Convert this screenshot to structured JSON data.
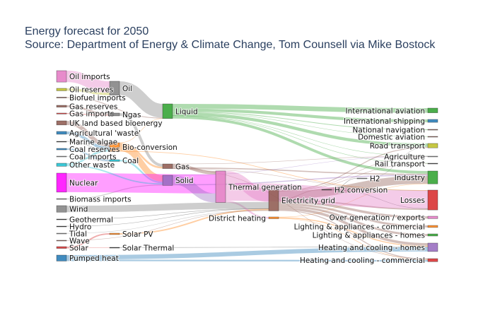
{
  "title": {
    "line1": "Energy forecast for 2050",
    "line2": "Source: Department of Energy & Climate Change, Tom Counsell via Mike Bostock"
  },
  "nodes": [
    {
      "label": "Agricultural 'waste'",
      "color": "#1f77b4"
    },
    {
      "label": "Bio-conversion",
      "color": "#ff7f0e"
    },
    {
      "label": "Liquid",
      "color": "#2ca02c"
    },
    {
      "label": "Losses",
      "color": "#d62728"
    },
    {
      "label": "Solid",
      "color": "#9467bd"
    },
    {
      "label": "Gas",
      "color": "#8c564b"
    },
    {
      "label": "Biofuel imports",
      "color": "#8c564b"
    },
    {
      "label": "Biomass imports",
      "color": "#7f7f7f"
    },
    {
      "label": "Coal imports",
      "color": "#7f7f7f"
    },
    {
      "label": "Coal",
      "color": "#17becf"
    },
    {
      "label": "Coal reserves",
      "color": "#1f77b4"
    },
    {
      "label": "District heating",
      "color": "#ff7f0e"
    },
    {
      "label": "Industry",
      "color": "#2ca02c"
    },
    {
      "label": "Heating and cooling - commercial",
      "color": "#d62728"
    },
    {
      "label": "Heating and cooling - homes",
      "color": "#9467bd"
    },
    {
      "label": "Electricity grid",
      "color": "#8c564b"
    },
    {
      "label": "Over generation / exports",
      "color": "#e377c2"
    },
    {
      "label": "H2 conversion",
      "color": "#333333"
    },
    {
      "label": "Road transport",
      "color": "#bcbd22"
    },
    {
      "label": "Agriculture",
      "color": "#7f7f7f"
    },
    {
      "label": "Rail transport",
      "color": "#333333"
    },
    {
      "label": "Lighting & appliances - commercial",
      "color": "#ff7f0e"
    },
    {
      "label": "Lighting & appliances - homes",
      "color": "#2ca02c"
    },
    {
      "label": "Gas imports",
      "color": "#d62728"
    },
    {
      "label": "Ngas",
      "color": "#7f7f7f"
    },
    {
      "label": "Gas reserves",
      "color": "#8c564b"
    },
    {
      "label": "Thermal generation",
      "color": "#e377c2"
    },
    {
      "label": "Geothermal",
      "color": "#222222"
    },
    {
      "label": "H2",
      "color": "#7f7f7f"
    },
    {
      "label": "Hydro",
      "color": "#222222"
    },
    {
      "label": "International shipping",
      "color": "#1f77b4"
    },
    {
      "label": "Domestic aviation",
      "color": "#8c564b"
    },
    {
      "label": "International aviation",
      "color": "#2ca02c"
    },
    {
      "label": "National navigation",
      "color": "#8c564b"
    },
    {
      "label": "Marine algae",
      "color": "#222222"
    },
    {
      "label": "Nuclear",
      "color": "#ff00ff"
    },
    {
      "label": "Oil imports",
      "color": "#e377c2"
    },
    {
      "label": "Oil",
      "color": "#7f7f7f"
    },
    {
      "label": "Oil reserves",
      "color": "#bcbd22"
    },
    {
      "label": "Other waste",
      "color": "#17becf"
    },
    {
      "label": "Pumped heat",
      "color": "#1f77b4"
    },
    {
      "label": "Solar PV",
      "color": "#ff7f0e"
    },
    {
      "label": "Solar Thermal",
      "color": "#222222"
    },
    {
      "label": "Solar",
      "color": "#d62728"
    },
    {
      "label": "Tidal",
      "color": "#7f7f7f"
    },
    {
      "label": "UK land based bioenergy",
      "color": "#8c564b"
    },
    {
      "label": "Wave",
      "color": "#8c564b"
    },
    {
      "label": "Wind",
      "color": "#7f7f7f"
    }
  ],
  "links": [
    [
      0,
      1,
      124.729
    ],
    [
      1,
      2,
      0.597
    ],
    [
      1,
      3,
      26.862
    ],
    [
      1,
      4,
      280.322
    ],
    [
      1,
      5,
      81.144
    ],
    [
      6,
      2,
      35
    ],
    [
      7,
      4,
      35
    ],
    [
      8,
      9,
      11.606
    ],
    [
      10,
      9,
      63.965
    ],
    [
      9,
      4,
      75.571
    ],
    [
      11,
      12,
      10.639
    ],
    [
      11,
      13,
      22.505
    ],
    [
      11,
      14,
      46.184
    ],
    [
      15,
      16,
      104.453
    ],
    [
      15,
      14,
      113.726
    ],
    [
      15,
      17,
      27.14
    ],
    [
      15,
      12,
      342.165
    ],
    [
      15,
      18,
      37.797
    ],
    [
      15,
      19,
      4.412
    ],
    [
      15,
      13,
      40.858
    ],
    [
      15,
      3,
      56.691
    ],
    [
      15,
      20,
      7.863
    ],
    [
      15,
      21,
      90.008
    ],
    [
      15,
      22,
      93.494
    ],
    [
      23,
      24,
      40.719
    ],
    [
      25,
      24,
      82.233
    ],
    [
      5,
      13,
      0.129
    ],
    [
      5,
      3,
      1.401
    ],
    [
      5,
      26,
      151.891
    ],
    [
      5,
      19,
      2.096
    ],
    [
      5,
      12,
      48.58
    ],
    [
      27,
      15,
      7.013
    ],
    [
      17,
      28,
      20.897
    ],
    [
      17,
      3,
      6.242
    ],
    [
      28,
      18,
      20.897
    ],
    [
      29,
      15,
      6.995
    ],
    [
      2,
      12,
      121.066
    ],
    [
      2,
      30,
      128.69
    ],
    [
      2,
      18,
      135.835
    ],
    [
      2,
      31,
      14.458
    ],
    [
      2,
      32,
      206.267
    ],
    [
      2,
      19,
      3.64
    ],
    [
      2,
      33,
      33.218
    ],
    [
      2,
      20,
      4.413
    ],
    [
      34,
      1,
      4.375
    ],
    [
      24,
      5,
      122.952
    ],
    [
      35,
      26,
      839.978
    ],
    [
      36,
      37,
      504.287
    ],
    [
      38,
      37,
      107.703
    ],
    [
      37,
      2,
      611.99
    ],
    [
      39,
      4,
      56.587
    ],
    [
      39,
      1,
      77.81
    ],
    [
      40,
      14,
      193.026
    ],
    [
      40,
      13,
      70.672
    ],
    [
      41,
      15,
      59.901
    ],
    [
      42,
      14,
      19.263
    ],
    [
      43,
      42,
      19.263
    ],
    [
      43,
      41,
      59.901
    ],
    [
      4,
      19,
      0.882
    ],
    [
      4,
      26,
      400.12
    ],
    [
      4,
      12,
      46.477
    ],
    [
      26,
      15,
      525.531
    ],
    [
      26,
      3,
      787.129
    ],
    [
      26,
      11,
      79.329
    ],
    [
      44,
      15,
      9.452
    ],
    [
      45,
      1,
      182.01
    ],
    [
      46,
      15,
      19.013
    ],
    [
      47,
      15,
      289.366
    ]
  ]
}
